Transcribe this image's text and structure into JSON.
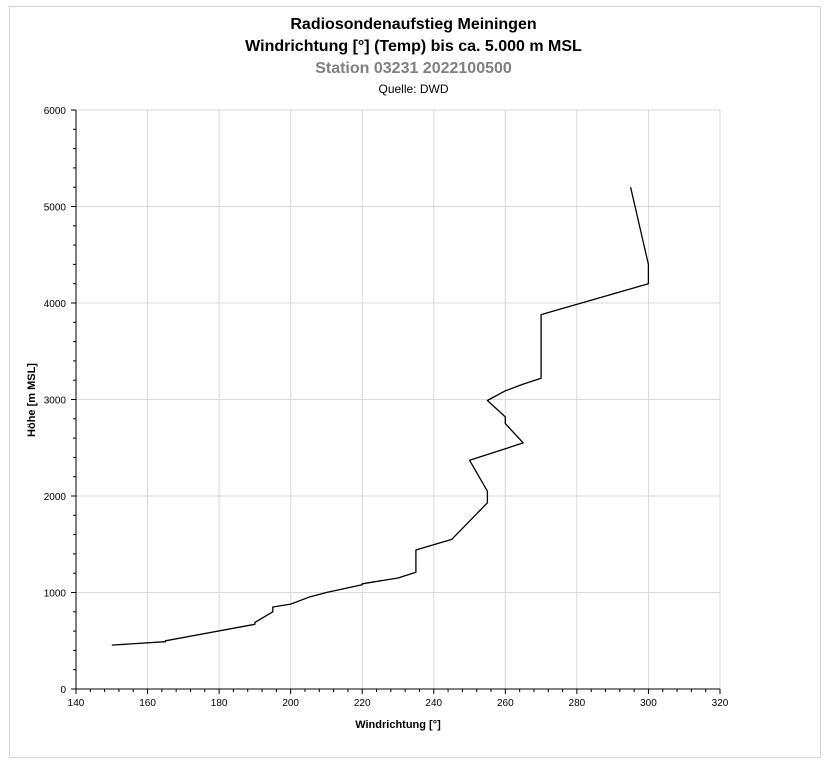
{
  "chart_data": {
    "type": "line",
    "title": "Radiosondenaufstieg Meiningen",
    "subtitle": "Windrichtung [°] (Temp) bis ca. 5.000 m MSL",
    "station": "Station 03231 2022100500",
    "source": "Quelle: DWD",
    "xlabel": "Windrichtung [°]",
    "ylabel": "Höhe [m MSL]",
    "xlim": [
      140,
      320
    ],
    "ylim": [
      0,
      6000
    ],
    "xticks": [
      140,
      160,
      180,
      200,
      220,
      240,
      260,
      280,
      300,
      320
    ],
    "yticks": [
      0,
      1000,
      2000,
      3000,
      4000,
      5000,
      6000
    ],
    "grid": true,
    "legend": "none",
    "line_color": "#000000",
    "series": [
      {
        "x": [
          150,
          165,
          165,
          190,
          190,
          195,
          195,
          200,
          205,
          210,
          220,
          220,
          230,
          235,
          235,
          245,
          255,
          255,
          250,
          265,
          260,
          260,
          255,
          260,
          265,
          270,
          270,
          300,
          300,
          295
        ],
        "y": [
          455,
          490,
          500,
          670,
          690,
          800,
          850,
          880,
          950,
          1000,
          1080,
          1090,
          1150,
          1210,
          1440,
          1550,
          1930,
          2050,
          2370,
          2550,
          2750,
          2820,
          2990,
          3090,
          3160,
          3220,
          3880,
          4200,
          4400,
          5200
        ]
      }
    ]
  }
}
